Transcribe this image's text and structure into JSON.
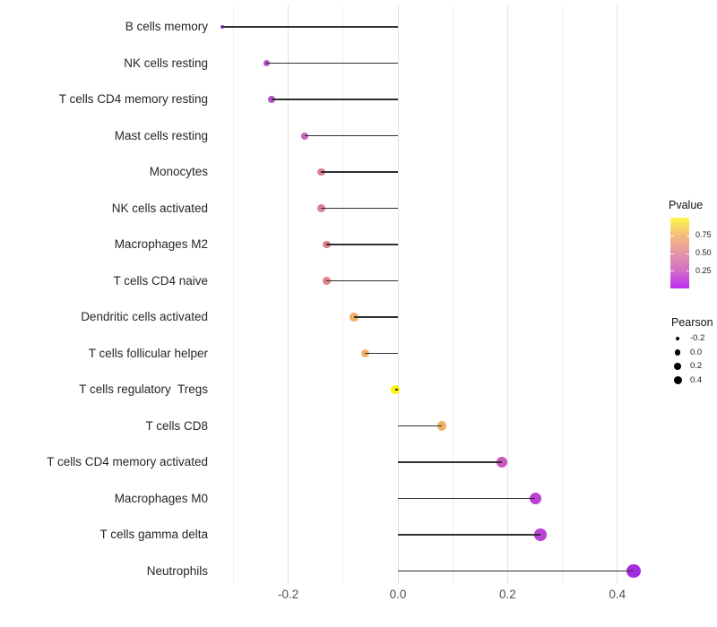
{
  "chart_data": {
    "type": "lollipop",
    "title": "",
    "xlabel": "",
    "ylabel": "",
    "x_ticks": [
      -0.2,
      0.0,
      0.2,
      0.4
    ],
    "x_tick_labels": [
      "-0.2",
      "0.0",
      "0.2",
      "0.4"
    ],
    "x_minor_gridlines": [
      -0.3,
      -0.1,
      0.1,
      0.3
    ],
    "xlim": [
      -0.34,
      0.46
    ],
    "grid": "vertical-only",
    "legend_position": "right",
    "points": [
      {
        "label": "B cells memory",
        "pearson": -0.32,
        "pvalue_est": 0.12,
        "color": "#9632cd",
        "diameter": 4
      },
      {
        "label": "NK cells resting",
        "pearson": -0.24,
        "pvalue_est": 0.22,
        "color": "#b250c5",
        "diameter": 7
      },
      {
        "label": "T cells CD4 memory resting",
        "pearson": -0.23,
        "pvalue_est": 0.24,
        "color": "#b357c3",
        "diameter": 7.5
      },
      {
        "label": "Mast cells resting",
        "pearson": -0.17,
        "pvalue_est": 0.35,
        "color": "#c964b4",
        "diameter": 8
      },
      {
        "label": "Monocytes",
        "pearson": -0.14,
        "pvalue_est": 0.5,
        "color": "#dd8093",
        "diameter": 8.5
      },
      {
        "label": "NK cells activated",
        "pearson": -0.14,
        "pvalue_est": 0.5,
        "color": "#de8190",
        "diameter": 8.5
      },
      {
        "label": "Macrophages M2",
        "pearson": -0.13,
        "pvalue_est": 0.52,
        "color": "#e0848a",
        "diameter": 8.5
      },
      {
        "label": "T cells CD4 naive",
        "pearson": -0.13,
        "pvalue_est": 0.52,
        "color": "#e08589",
        "diameter": 8.5
      },
      {
        "label": "Dendritic cells activated",
        "pearson": -0.08,
        "pvalue_est": 0.7,
        "color": "#f1ae66",
        "diameter": 9.5
      },
      {
        "label": "T cells follicular helper",
        "pearson": -0.06,
        "pvalue_est": 0.72,
        "color": "#f1b164",
        "diameter": 9.5
      },
      {
        "label": "T cells regulatory  Tregs",
        "pearson": -0.005,
        "pvalue_est": 0.95,
        "color": "#fbf50c",
        "diameter": 9.5
      },
      {
        "label": "T cells CD8",
        "pearson": 0.08,
        "pvalue_est": 0.7,
        "color": "#f0b061",
        "diameter": 10.5
      },
      {
        "label": "T cells CD4 memory activated",
        "pearson": 0.19,
        "pvalue_est": 0.3,
        "color": "#ca58be",
        "diameter": 12
      },
      {
        "label": "Macrophages M0",
        "pearson": 0.25,
        "pvalue_est": 0.18,
        "color": "#bb41d2",
        "diameter": 13
      },
      {
        "label": "T cells gamma delta",
        "pearson": 0.26,
        "pvalue_est": 0.18,
        "color": "#ba43d6",
        "diameter": 13.5
      },
      {
        "label": "Neutrophils",
        "pearson": 0.43,
        "pvalue_est": 0.08,
        "color": "#a42ce1",
        "diameter": 15.5
      }
    ],
    "legend_pvalue": {
      "title": "Pvalue",
      "tick_labels": [
        "0.75",
        "0.50",
        "0.25"
      ],
      "tick_fractions_from_top": [
        0.25,
        0.5,
        0.75
      ],
      "gradient_top_to_bottom": [
        "#fdf84d",
        "#f4bc7b",
        "#e595a4",
        "#d26fc5",
        "#bf2cf4"
      ]
    },
    "legend_pearson": {
      "title": "Pearson",
      "entries": [
        {
          "label": "-0.2",
          "diameter": 4.5
        },
        {
          "label": "0.0",
          "diameter": 6.5
        },
        {
          "label": "0.2",
          "diameter": 8
        },
        {
          "label": "0.4",
          "diameter": 9
        }
      ]
    }
  }
}
